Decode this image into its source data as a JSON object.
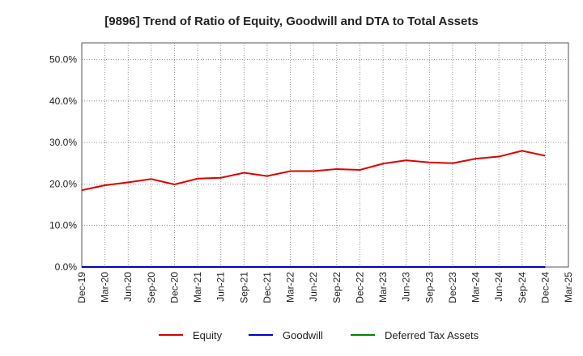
{
  "chart_data": {
    "type": "line",
    "title": "[9896]  Trend of Ratio of Equity, Goodwill and DTA to Total Assets",
    "xlabel": "",
    "ylabel": "",
    "ylim": [
      0,
      0.54
    ],
    "yticks": [
      0.0,
      0.1,
      0.2,
      0.3,
      0.4,
      0.5
    ],
    "ytick_labels": [
      "0.0%",
      "10.0%",
      "20.0%",
      "30.0%",
      "40.0%",
      "50.0%"
    ],
    "grid": true,
    "legend_position": "bottom",
    "categories": [
      "Dec-19",
      "Mar-20",
      "Jun-20",
      "Sep-20",
      "Dec-20",
      "Mar-21",
      "Jun-21",
      "Sep-21",
      "Dec-21",
      "Mar-22",
      "Jun-22",
      "Sep-22",
      "Dec-22",
      "Mar-23",
      "Jun-23",
      "Sep-23",
      "Dec-23",
      "Mar-24",
      "Jun-24",
      "Sep-24",
      "Dec-24",
      "Mar-25"
    ],
    "series": [
      {
        "name": "Equity",
        "color": "#dd0000",
        "values": [
          0.185,
          0.197,
          0.204,
          0.212,
          0.199,
          0.213,
          0.215,
          0.227,
          0.219,
          0.231,
          0.231,
          0.236,
          0.234,
          0.249,
          0.257,
          0.252,
          0.25,
          0.261,
          0.266,
          0.28,
          0.268,
          null
        ]
      },
      {
        "name": "Goodwill",
        "color": "#0000cc",
        "values": [
          0.0,
          0.0,
          0.0,
          0.0,
          0.0,
          0.0,
          0.0,
          0.0,
          0.0,
          0.0,
          0.0,
          0.0,
          0.0,
          0.0,
          0.0,
          0.0,
          0.0,
          0.0,
          0.0,
          0.0,
          0.0,
          null
        ]
      },
      {
        "name": "Deferred Tax Assets",
        "color": "#008800",
        "values": [
          null,
          null,
          null,
          null,
          null,
          null,
          null,
          null,
          null,
          null,
          null,
          null,
          null,
          null,
          null,
          null,
          null,
          null,
          null,
          null,
          null,
          null
        ]
      }
    ]
  }
}
